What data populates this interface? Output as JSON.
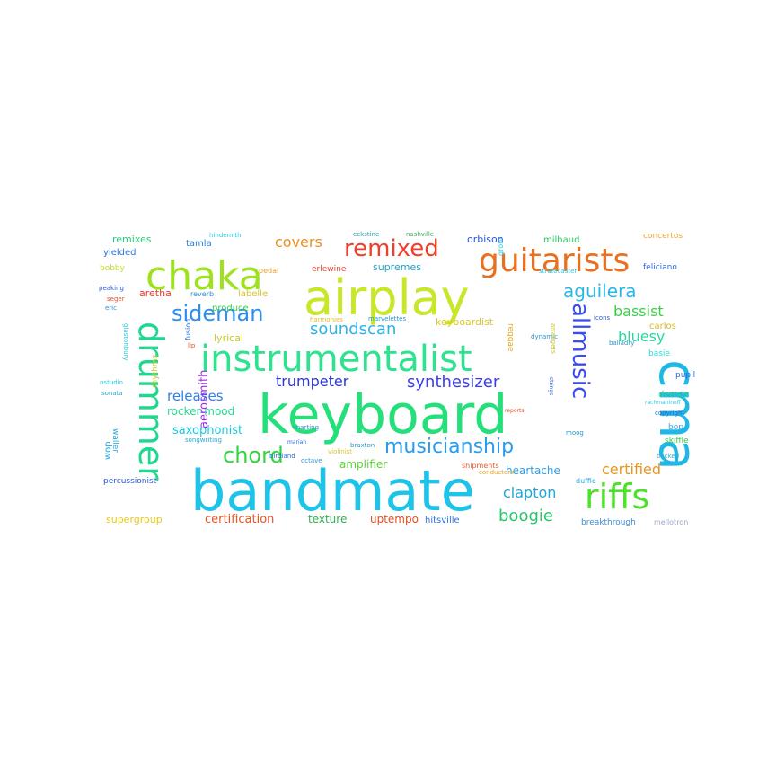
{
  "words": [
    {
      "text": "bandmate",
      "color": "#1ec4e8"
    },
    {
      "text": "keyboard",
      "color": "#25df7b"
    },
    {
      "text": "airplay",
      "color": "#c8e62a"
    },
    {
      "text": "cma",
      "color": "#1fb8e6"
    },
    {
      "text": "instrumentalist",
      "color": "#2fe28f"
    },
    {
      "text": "chaka",
      "color": "#9ee21f"
    },
    {
      "text": "drummer",
      "color": "#1fd78e"
    },
    {
      "text": "guitarists",
      "color": "#e8701f"
    },
    {
      "text": "riffs",
      "color": "#4ee02a"
    },
    {
      "text": "remixed",
      "color": "#ef3e2a"
    },
    {
      "text": "allmusic",
      "color": "#3a4bf2"
    },
    {
      "text": "musicianship",
      "color": "#2a9cf0"
    },
    {
      "text": "sideman",
      "color": "#2a8ff2"
    },
    {
      "text": "chord",
      "color": "#2fd640"
    },
    {
      "text": "aguilera",
      "color": "#27b8e8"
    },
    {
      "text": "synthesizer",
      "color": "#3a3ef0"
    },
    {
      "text": "soundscan",
      "color": "#2eb2e6"
    },
    {
      "text": "bluesy",
      "color": "#28d8a0"
    },
    {
      "text": "bassist",
      "color": "#3ad046"
    },
    {
      "text": "boogie",
      "color": "#2ac66c"
    },
    {
      "text": "clapton",
      "color": "#1aa8d8"
    },
    {
      "text": "certified",
      "color": "#e8961e"
    },
    {
      "text": "covers",
      "color": "#e8901e"
    },
    {
      "text": "trumpeter",
      "color": "#2b35e0"
    },
    {
      "text": "releases",
      "color": "#2f80ea"
    },
    {
      "text": "aerosmith",
      "color": "#9a2ee8"
    },
    {
      "text": "amplifier",
      "color": "#5fd23a"
    },
    {
      "text": "heartache",
      "color": "#2f9ee8"
    },
    {
      "text": "saxophonist",
      "color": "#18c8e0"
    },
    {
      "text": "rocker mood",
      "color": "#2ad890"
    },
    {
      "text": "certification",
      "color": "#e8531e"
    },
    {
      "text": "texture",
      "color": "#2fb04e"
    },
    {
      "text": "uptempo",
      "color": "#e84e1e"
    },
    {
      "text": "supergroup",
      "color": "#e6c81e"
    },
    {
      "text": "keyboardist",
      "color": "#d6c82a"
    },
    {
      "text": "supremes",
      "color": "#1aa4c8"
    },
    {
      "text": "orbison",
      "color": "#2a50e0"
    },
    {
      "text": "milhaud",
      "color": "#2ec45e"
    },
    {
      "text": "aretha",
      "color": "#e63a2a"
    },
    {
      "text": "labelle",
      "color": "#d8c228"
    },
    {
      "text": "produce",
      "color": "#3acb46"
    },
    {
      "text": "lyrical",
      "color": "#c6cb2a"
    },
    {
      "text": "remixes",
      "color": "#2fc97c"
    },
    {
      "text": "tamla",
      "color": "#2a7ed8"
    },
    {
      "text": "demos",
      "color": "#2ad890"
    },
    {
      "text": "carlos",
      "color": "#d8b82a"
    },
    {
      "text": "hitsville",
      "color": "#2e74e2"
    },
    {
      "text": "breakthrough",
      "color": "#3a8ed8"
    },
    {
      "text": "mellotron",
      "color": "#9aa8c8"
    },
    {
      "text": "concertos",
      "color": "#e8a83a"
    },
    {
      "text": "percussionist",
      "color": "#2a58d8"
    },
    {
      "text": "pupil",
      "color": "#2a6ae0"
    },
    {
      "text": "basie",
      "color": "#2ad8d8"
    },
    {
      "text": "bop",
      "color": "#2aa8e0"
    },
    {
      "text": "skiffle",
      "color": "#3ac84a"
    },
    {
      "text": "feliciano",
      "color": "#2a68e0"
    },
    {
      "text": "wop",
      "color": "#2aa4e0"
    },
    {
      "text": "waller",
      "color": "#2aa8d8"
    },
    {
      "text": "yielded",
      "color": "#2a72d8"
    },
    {
      "text": "bobby",
      "color": "#c8d82a"
    },
    {
      "text": "peaking",
      "color": "#2a5ad8"
    },
    {
      "text": "seger",
      "color": "#e84e2a"
    },
    {
      "text": "eric",
      "color": "#2a8ed8"
    },
    {
      "text": "sonata",
      "color": "#2aa8c8"
    },
    {
      "text": "nstudio",
      "color": "#2ac8e0"
    },
    {
      "text": "rhythms",
      "color": "#c8c82a"
    },
    {
      "text": "reverb",
      "color": "#2a90d8"
    },
    {
      "text": "pedal",
      "color": "#e89e3a"
    },
    {
      "text": "hindemith",
      "color": "#2ac8e0"
    },
    {
      "text": "eckstine",
      "color": "#2aa4a8"
    },
    {
      "text": "nashville",
      "color": "#3ab05a"
    },
    {
      "text": "erlewine",
      "color": "#e8432a"
    },
    {
      "text": "charting",
      "color": "#2a98c8"
    },
    {
      "text": "birdland",
      "color": "#2a70d8"
    },
    {
      "text": "octave",
      "color": "#2a98d8"
    },
    {
      "text": "shipments",
      "color": "#e85a2a"
    },
    {
      "text": "braxton",
      "color": "#2a98c8"
    },
    {
      "text": "violinist",
      "color": "#d8c82a"
    },
    {
      "text": "songwriting",
      "color": "#2aa8d8"
    },
    {
      "text": "mariah",
      "color": "#2a6ad8"
    },
    {
      "text": "conductors",
      "color": "#e8a82a"
    },
    {
      "text": "duffie",
      "color": "#2aa8d8"
    },
    {
      "text": "backed",
      "color": "#3aa8c8"
    },
    {
      "text": "copyright",
      "color": "#2a6ad8"
    },
    {
      "text": "reggae",
      "color": "#e8a82a"
    },
    {
      "text": "dynamic",
      "color": "#2a98c8"
    },
    {
      "text": "fusion",
      "color": "#2a68c8"
    },
    {
      "text": "lip",
      "color": "#e84e2a"
    },
    {
      "text": "glastonbury",
      "color": "#2ac8e0"
    },
    {
      "text": "grohl",
      "color": "#2ac8e0"
    },
    {
      "text": "icons",
      "color": "#2a58c8"
    },
    {
      "text": "balladry",
      "color": "#2a98c8"
    },
    {
      "text": "arrangers",
      "color": "#c8c82a"
    },
    {
      "text": "moog",
      "color": "#2a98c8"
    },
    {
      "text": "harmonies",
      "color": "#e8b82a"
    },
    {
      "text": "marvelettes",
      "color": "#2a98c8"
    },
    {
      "text": "stratocaster",
      "color": "#2ac8e0"
    },
    {
      "text": "rachmaninoff",
      "color": "#2ac8e0"
    },
    {
      "text": "strings",
      "color": "#2a58c8"
    },
    {
      "text": "reports",
      "color": "#e84e2a"
    }
  ]
}
